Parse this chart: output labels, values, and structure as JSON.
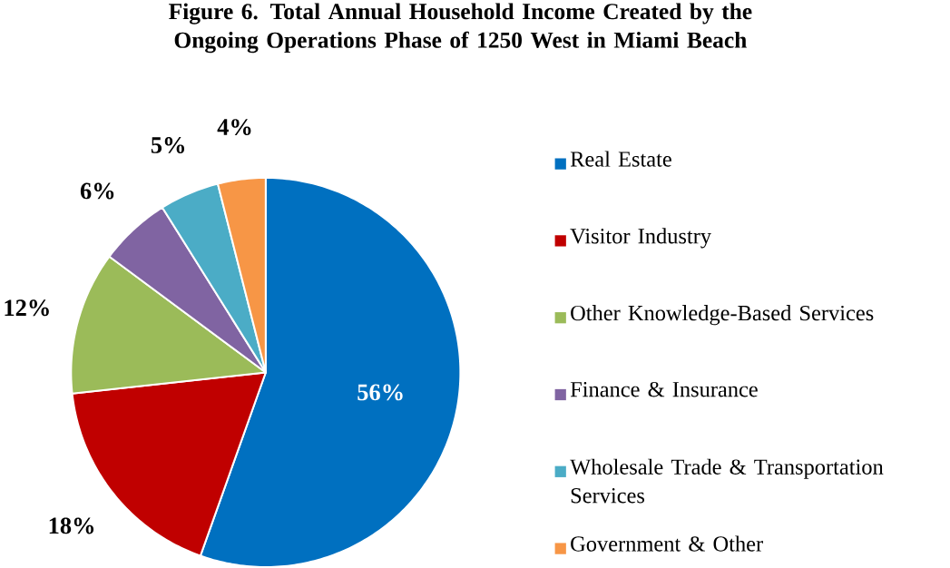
{
  "chart_data": {
    "type": "pie",
    "title": "Figure 6. Total Annual Household Income Created by the Ongoing Operations Phase of 1250 West in Miami Beach",
    "categories": [
      "Real Estate",
      "Visitor Industry",
      "Other Knowledge-Based Services",
      "Finance & Insurance",
      "Wholesale Trade & Transportation Services",
      "Government & Other"
    ],
    "values": [
      56,
      18,
      12,
      6,
      5,
      4
    ],
    "colors": [
      "#0070c0",
      "#c00000",
      "#9bbb59",
      "#8064a2",
      "#4bacc6",
      "#f79646"
    ],
    "value_labels": [
      "56%",
      "18%",
      "12%",
      "6%",
      "5%",
      "4%"
    ],
    "legend": "right"
  }
}
